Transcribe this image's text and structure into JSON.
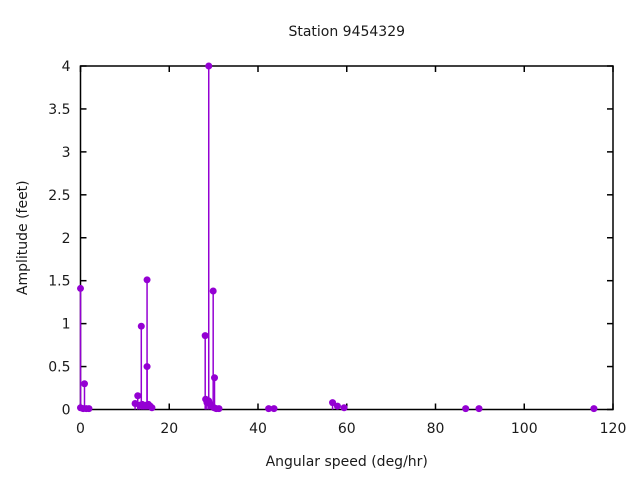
{
  "figure": {
    "title": "Station 9454329",
    "xlabel": "Angular speed (deg/hr)",
    "ylabel": "Amplitude (feet)"
  },
  "chart_data": {
    "type": "scatter",
    "style": "stem (impulses with points)",
    "title": "Station 9454329",
    "xlabel": "Angular speed (deg/hr)",
    "ylabel": "Amplitude (feet)",
    "xlim": [
      0,
      120
    ],
    "ylim": [
      0,
      4
    ],
    "xtick_values": [
      0,
      20,
      40,
      60,
      80,
      100,
      120
    ],
    "xtick_labels": [
      "0",
      "20",
      "40",
      "60",
      "80",
      "100",
      "120"
    ],
    "ytick_values": [
      0,
      0.5,
      1,
      1.5,
      2,
      2.5,
      3,
      3.5,
      4
    ],
    "ytick_labels": [
      "0",
      "0.5",
      "1",
      "1.5",
      "2",
      "2.5",
      "3",
      "3.5",
      "4"
    ],
    "grid": false,
    "legend": "none",
    "border_box": true,
    "mirrored_ticks": true,
    "point_color": "#9400d3",
    "axis_color": "#000000",
    "points": [
      [
        0,
        1.41
      ],
      [
        0,
        0.02
      ],
      [
        0.6,
        0.01
      ],
      [
        0.9,
        0.3
      ],
      [
        1.3,
        0.01
      ],
      [
        1.9,
        0.01
      ],
      [
        12.3,
        0.07
      ],
      [
        12.9,
        0.16
      ],
      [
        13.3,
        0.05
      ],
      [
        13.7,
        0.97
      ],
      [
        13.9,
        0.06
      ],
      [
        14.3,
        0.04
      ],
      [
        14.7,
        0.05
      ],
      [
        15.0,
        1.51
      ],
      [
        15.0,
        0.5
      ],
      [
        15.3,
        0.06
      ],
      [
        15.7,
        0.04
      ],
      [
        16.1,
        0.02
      ],
      [
        28.1,
        0.86
      ],
      [
        28.2,
        0.12
      ],
      [
        28.5,
        0.08
      ],
      [
        28.9,
        4.0
      ],
      [
        28.9,
        0.1
      ],
      [
        29.3,
        0.06
      ],
      [
        29.6,
        0.04
      ],
      [
        29.9,
        1.38
      ],
      [
        30.2,
        0.37
      ],
      [
        30.1,
        0.02
      ],
      [
        30.6,
        0.01
      ],
      [
        31.2,
        0.01
      ],
      [
        42.4,
        0.01
      ],
      [
        43.6,
        0.01
      ],
      [
        56.8,
        0.08
      ],
      [
        57.9,
        0.04
      ],
      [
        59.4,
        0.02
      ],
      [
        86.8,
        0.01
      ],
      [
        89.8,
        0.01
      ],
      [
        115.7,
        0.01
      ]
    ]
  }
}
